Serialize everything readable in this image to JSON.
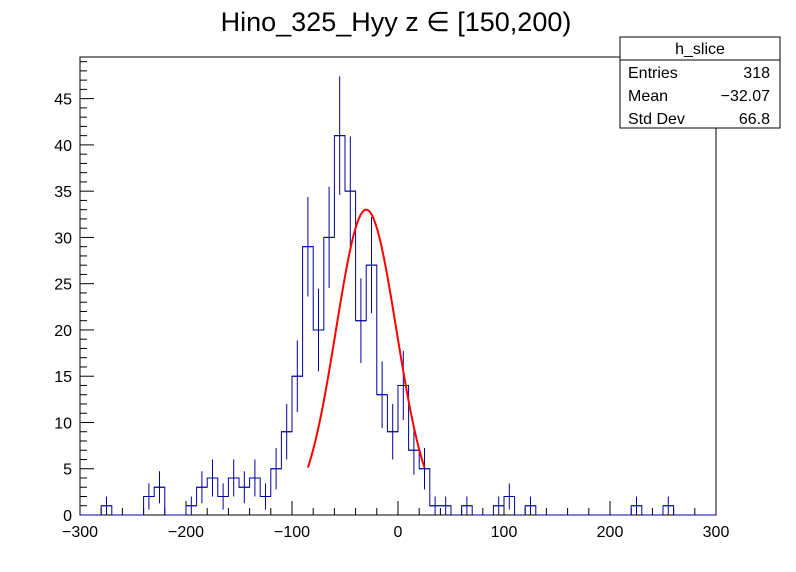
{
  "chart_data": {
    "type": "histogram",
    "title": "Hino_325_Hyy z  ∈ [150,200)",
    "xlabel": "",
    "ylabel": "",
    "xlim": [
      -300,
      300
    ],
    "ylim": [
      0,
      49.5
    ],
    "x_ticks": [
      -300,
      -200,
      -100,
      0,
      100,
      200,
      300
    ],
    "y_ticks": [
      0,
      5,
      10,
      15,
      20,
      25,
      30,
      35,
      40,
      45
    ],
    "x_tick_labels": [
      "−300",
      "−200",
      "−100",
      "0",
      "100",
      "200",
      "300"
    ],
    "y_tick_labels": [
      "0",
      "5",
      "10",
      "15",
      "20",
      "25",
      "30",
      "35",
      "40",
      "45"
    ],
    "bin_width": 10,
    "bin_low_edges": [
      -300,
      -290,
      -280,
      -270,
      -260,
      -250,
      -240,
      -230,
      -220,
      -210,
      -200,
      -190,
      -180,
      -170,
      -160,
      -150,
      -140,
      -130,
      -120,
      -110,
      -100,
      -90,
      -80,
      -70,
      -60,
      -50,
      -40,
      -30,
      -20,
      -10,
      0,
      10,
      20,
      30,
      40,
      50,
      60,
      70,
      80,
      90,
      100,
      110,
      120,
      130,
      140,
      150,
      160,
      170,
      180,
      190,
      200,
      210,
      220,
      230,
      240,
      250,
      260,
      270,
      280,
      290
    ],
    "counts": [
      0,
      0,
      1,
      0,
      0,
      0,
      2,
      3,
      0,
      0,
      1,
      3,
      4,
      2,
      4,
      3,
      4,
      2,
      5,
      9,
      15,
      29,
      20,
      30,
      41,
      35,
      21,
      27,
      13,
      9,
      14,
      7,
      5,
      1,
      1,
      0,
      1,
      0,
      0,
      1,
      2,
      0,
      1,
      0,
      0,
      0,
      0,
      0,
      0,
      0,
      0,
      0,
      1,
      0,
      0,
      1,
      0,
      0,
      0,
      0
    ],
    "grid": false,
    "line_color": "#000099",
    "fit": {
      "type": "gaus",
      "color": "#ff0000",
      "constant": 33.0,
      "mean": -30.0,
      "sigma": 28.5,
      "range": [
        -85,
        25
      ]
    },
    "stats_box": {
      "name": "h_slice",
      "rows": [
        {
          "label": "Entries",
          "value": "318"
        },
        {
          "label": "Mean",
          "value": "−32.07"
        },
        {
          "label": "Std Dev",
          "value": "66.8"
        }
      ],
      "position": "top-right"
    }
  }
}
